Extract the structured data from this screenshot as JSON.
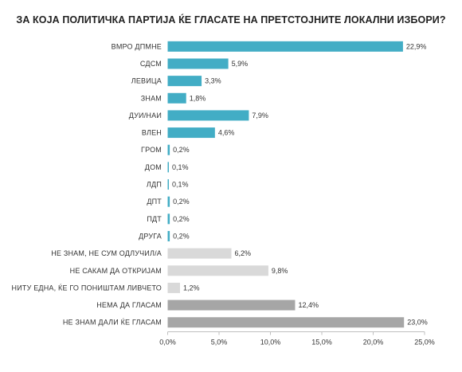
{
  "chart_data": {
    "type": "bar",
    "orientation": "horizontal",
    "title": "ЗА КОЈА ПОЛИТИЧКА ПАРТИЈА ЌЕ ГЛАСАТЕ НА ПРЕТСТОЈНИТЕ ЛОКАЛНИ ИЗБОРИ?",
    "categories": [
      "ВМРО ДПМНЕ",
      "СДСМ",
      "ЛЕВИЦА",
      "ЗНАМ",
      "ДУИ/НАИ",
      "ВЛЕН",
      "ГРОМ",
      "ДОМ",
      "ЛДП",
      "ДПТ",
      "ПДТ",
      "ДРУГА",
      "НЕ ЗНАМ, НЕ СУМ ОДЛУЧИЛ/А",
      "НЕ САКАМ ДА ОТКРИЈАМ",
      "НИТУ ЕДНА, ЌЕ ГО ПОНИШТАМ ЛИВЧЕТО",
      "НЕМА ДА ГЛАСАМ",
      "НЕ ЗНАМ ДАЛИ ЌЕ ГЛАСАМ"
    ],
    "values": [
      22.9,
      5.9,
      3.3,
      1.8,
      7.9,
      4.6,
      0.2,
      0.1,
      0.1,
      0.2,
      0.2,
      0.2,
      6.2,
      9.8,
      1.2,
      12.4,
      23.0
    ],
    "value_labels": [
      "22,9%",
      "5,9%",
      "3,3%",
      "1,8%",
      "7,9%",
      "4,6%",
      "0,2%",
      "0,1%",
      "0,1%",
      "0,2%",
      "0,2%",
      "0,2%",
      "6,2%",
      "9,8%",
      "1,2%",
      "12,4%",
      "23,0%"
    ],
    "bar_colors": [
      "#42adc5",
      "#42adc5",
      "#42adc5",
      "#42adc5",
      "#42adc5",
      "#42adc5",
      "#42adc5",
      "#42adc5",
      "#42adc5",
      "#42adc5",
      "#42adc5",
      "#42adc5",
      "#d9d9d9",
      "#d9d9d9",
      "#d9d9d9",
      "#a6a6a6",
      "#a6a6a6"
    ],
    "xlim": [
      0,
      25
    ],
    "xticks": [
      0,
      5,
      10,
      15,
      20,
      25
    ],
    "xtick_labels": [
      "0,0%",
      "5,0%",
      "10,0%",
      "15,0%",
      "20,0%",
      "25,0%"
    ],
    "grid": false,
    "legend": "none"
  }
}
